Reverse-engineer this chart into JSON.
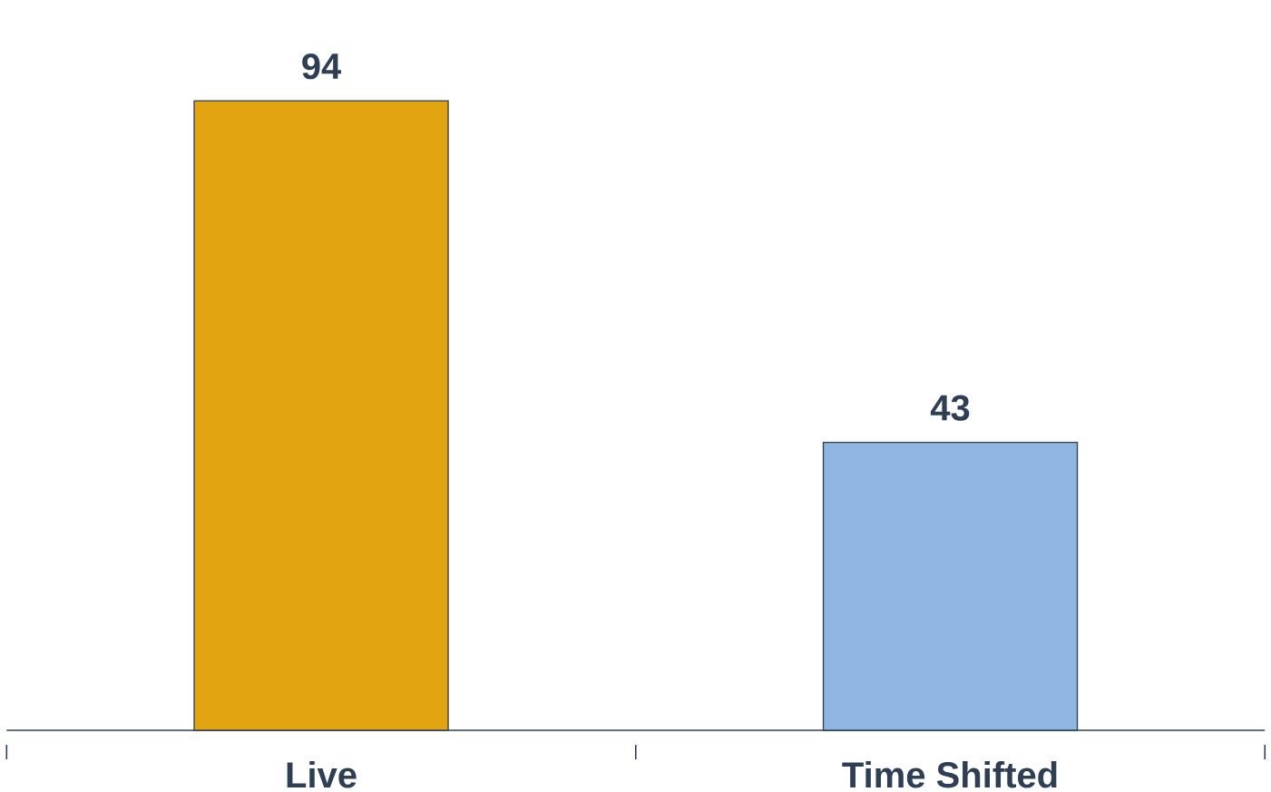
{
  "chart_data": {
    "type": "bar",
    "categories": [
      "Live",
      "Time Shifted"
    ],
    "values": [
      94,
      43
    ],
    "colors": [
      "#e3a412",
      "#8fb6e2"
    ],
    "data_labels": true
  }
}
